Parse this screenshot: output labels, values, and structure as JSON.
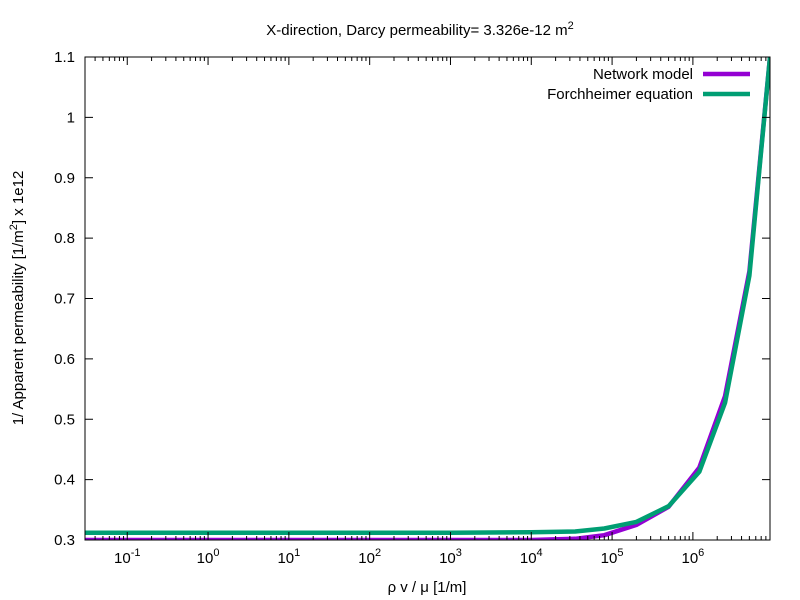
{
  "chart_data": {
    "type": "line",
    "title": {
      "main": "X-direction, Darcy permeability= 3.326e-12 m",
      "sup": "2"
    },
    "xlabel": "ρ v / μ [1/m]",
    "ylabel": {
      "pre": "1/ Apparent permeability [1/m",
      "sup": "2",
      "post": "]  x 1e12"
    },
    "x_scale": "log",
    "xlim": [
      0.03,
      9000000
    ],
    "ylim": [
      0.3,
      1.1
    ],
    "x_ticks": [
      {
        "value": 0.1,
        "base": "10",
        "exp": "-1"
      },
      {
        "value": 1,
        "base": "10",
        "exp": "0"
      },
      {
        "value": 10,
        "base": "10",
        "exp": "1"
      },
      {
        "value": 100,
        "base": "10",
        "exp": "2"
      },
      {
        "value": 1000,
        "base": "10",
        "exp": "3"
      },
      {
        "value": 10000,
        "base": "10",
        "exp": "4"
      },
      {
        "value": 100000,
        "base": "10",
        "exp": "5"
      },
      {
        "value": 1000000,
        "base": "10",
        "exp": "6"
      }
    ],
    "y_ticks": [
      {
        "value": 0.3,
        "label": "0.3"
      },
      {
        "value": 0.4,
        "label": "0.4"
      },
      {
        "value": 0.5,
        "label": "0.5"
      },
      {
        "value": 0.6,
        "label": "0.6"
      },
      {
        "value": 0.7,
        "label": "0.7"
      },
      {
        "value": 0.8,
        "label": "0.8"
      },
      {
        "value": 0.9,
        "label": "0.9"
      },
      {
        "value": 1.0,
        "label": "1"
      },
      {
        "value": 1.1,
        "label": "1.1"
      }
    ],
    "grid": false,
    "legend_position": "top-right",
    "series": [
      {
        "name": "Network model",
        "color": "#9400d3",
        "x": [
          0.03,
          0.1,
          1,
          10,
          100,
          1000,
          10000,
          35000,
          80000,
          200000,
          500000,
          1200000,
          2500000,
          5000000,
          9000000
        ],
        "y": [
          0.3,
          0.3,
          0.3,
          0.3,
          0.3,
          0.3,
          0.3,
          0.302,
          0.308,
          0.325,
          0.355,
          0.42,
          0.538,
          0.745,
          1.1
        ]
      },
      {
        "name": "Forchheimer equation",
        "color": "#009e73",
        "x": [
          0.03,
          0.1,
          1,
          10,
          100,
          1000,
          10000,
          35000,
          80000,
          200000,
          500000,
          1200000,
          2500000,
          5000000,
          9000000
        ],
        "y": [
          0.312,
          0.312,
          0.312,
          0.312,
          0.312,
          0.312,
          0.313,
          0.314,
          0.319,
          0.33,
          0.356,
          0.413,
          0.527,
          0.738,
          1.1
        ]
      }
    ]
  }
}
